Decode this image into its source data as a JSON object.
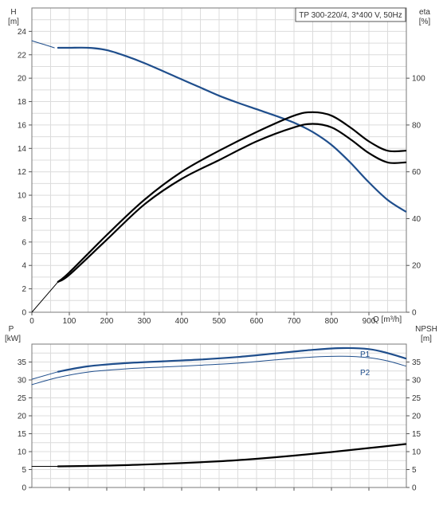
{
  "chart_data": [
    {
      "type": "line",
      "title": "TP 300-220/4, 3*400 V, 50Hz",
      "left_axis": {
        "label": "H",
        "unit": "[m]",
        "range": [
          0,
          26
        ],
        "ticks": [
          "0",
          "2",
          "4",
          "6",
          "8",
          "10",
          "12",
          "14",
          "16",
          "18",
          "20",
          "22",
          "24"
        ]
      },
      "right_axis": {
        "label": "eta",
        "unit": "[%]",
        "range": [
          0,
          130
        ],
        "ticks": [
          "0",
          "20",
          "40",
          "60",
          "80",
          "100"
        ]
      },
      "x_axis": {
        "label": "Q [m³/h]",
        "range": [
          0,
          1000
        ],
        "ticks": [
          "0",
          "100",
          "200",
          "300",
          "400",
          "500",
          "600",
          "700",
          "800",
          "900"
        ]
      },
      "grid": true,
      "series": [
        {
          "axis": "left",
          "color": "#1f4e8c",
          "x": [
            0,
            30,
            60
          ],
          "y": [
            23.2,
            22.9,
            22.6
          ],
          "style": "thin"
        },
        {
          "axis": "left",
          "color": "#1f4e8c",
          "x": [
            70,
            100,
            150,
            200,
            250,
            300,
            350,
            400,
            450,
            500,
            550,
            600,
            650,
            700,
            750,
            800,
            850,
            900,
            950,
            998
          ],
          "y": [
            22.6,
            22.6,
            22.6,
            22.4,
            21.9,
            21.3,
            20.6,
            19.9,
            19.2,
            18.5,
            17.9,
            17.35,
            16.8,
            16.2,
            15.4,
            14.3,
            12.8,
            11.1,
            9.6,
            8.6
          ]
        },
        {
          "axis": "right",
          "color": "#000000",
          "x": [
            0,
            70
          ],
          "y": [
            0,
            13
          ],
          "style": "thin"
        },
        {
          "axis": "right",
          "color": "#000000",
          "x": [
            70,
            100,
            200,
            300,
            400,
            500,
            600,
            700,
            750,
            800,
            850,
            900,
            950,
            998
          ],
          "y": [
            13,
            17,
            33,
            48,
            60,
            69,
            77,
            84,
            85.5,
            84,
            79,
            73,
            69,
            69
          ]
        },
        {
          "axis": "right",
          "color": "#000000",
          "x": [
            70,
            100,
            200,
            300,
            400,
            500,
            600,
            700,
            750,
            800,
            850,
            900,
            950,
            998
          ],
          "y": [
            13,
            16,
            31,
            46,
            57,
            65,
            73,
            79,
            80.5,
            79,
            74,
            68,
            64,
            64
          ]
        }
      ]
    },
    {
      "type": "line",
      "left_axis": {
        "label": "P",
        "unit": "[kW]",
        "range": [
          0,
          40
        ],
        "ticks": [
          "0",
          "5",
          "10",
          "15",
          "20",
          "25",
          "30",
          "35"
        ]
      },
      "right_axis": {
        "label": "NPSH",
        "unit": "[m]",
        "range": [
          0,
          40
        ],
        "ticks": [
          "0",
          "5",
          "10",
          "15",
          "20",
          "25",
          "30",
          "35"
        ]
      },
      "x_axis": {
        "range": [
          0,
          1000
        ]
      },
      "grid": true,
      "series": [
        {
          "name": "P1",
          "axis": "left",
          "color": "#1f4e8c",
          "x": [
            0,
            70
          ],
          "y": [
            30.2,
            32.3
          ],
          "style": "thin"
        },
        {
          "name": "P1",
          "axis": "left",
          "color": "#1f4e8c",
          "x": [
            70,
            150,
            250,
            350,
            450,
            550,
            650,
            750,
            830,
            900,
            950,
            998
          ],
          "y": [
            32.3,
            33.8,
            34.7,
            35.2,
            35.7,
            36.4,
            37.4,
            38.4,
            38.9,
            38.6,
            37.5,
            36.0
          ]
        },
        {
          "name": "P2",
          "axis": "left",
          "color": "#1f4e8c",
          "x": [
            0,
            70,
            150,
            250,
            350,
            450,
            550,
            650,
            750,
            830,
            900,
            950,
            998
          ],
          "y": [
            28.7,
            30.7,
            32.2,
            33.1,
            33.6,
            34.1,
            34.7,
            35.6,
            36.4,
            36.6,
            36.2,
            35.3,
            33.9
          ],
          "style": "thin"
        },
        {
          "axis": "right",
          "color": "#000000",
          "x": [
            0,
            70
          ],
          "y": [
            5.9,
            5.9
          ],
          "style": "thin"
        },
        {
          "axis": "right",
          "color": "#000000",
          "x": [
            70,
            200,
            300,
            400,
            500,
            600,
            700,
            800,
            900,
            998
          ],
          "y": [
            5.9,
            6.1,
            6.4,
            6.8,
            7.3,
            8.0,
            8.9,
            9.9,
            11.0,
            12.1
          ]
        }
      ]
    }
  ]
}
